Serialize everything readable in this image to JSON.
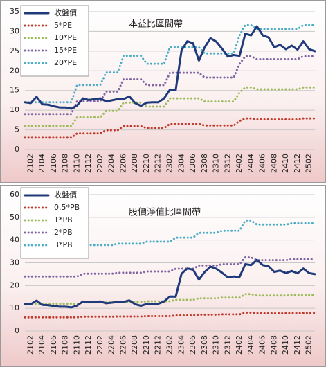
{
  "chart_data": [
    {
      "type": "line",
      "title": "本益比區間帶",
      "legend": "upper left",
      "grid": true,
      "categories": [
        null,
        "2102",
        null,
        "2104",
        null,
        "2106",
        null,
        "2108",
        null,
        "2110",
        null,
        "2112",
        null,
        "2202",
        null,
        "2204",
        null,
        "2206",
        null,
        "2208",
        null,
        "2210",
        null,
        "2212",
        null,
        "2302",
        null,
        "2304",
        null,
        "2306",
        null,
        "2308",
        null,
        "2310",
        null,
        "2312",
        null,
        "2402",
        null,
        "2404",
        null,
        "2406",
        null,
        "2408",
        null,
        "2410",
        null,
        "2412",
        null,
        "2502",
        null
      ],
      "ylim": [
        0,
        35
      ],
      "yticks": [
        0,
        5,
        10,
        15,
        20,
        25,
        30,
        35
      ],
      "series": [
        {
          "name": "收盤價",
          "color": "#1f3a7a",
          "values": [
            12,
            11.8,
            13.4,
            11.5,
            11.4,
            11,
            10.7,
            10.7,
            10.4,
            11.2,
            13,
            12.6,
            12.8,
            13,
            12.2,
            12.5,
            12.8,
            12.8,
            13.5,
            11.8,
            11.1,
            11.9,
            12,
            12,
            13,
            15.2,
            15.1,
            25.2,
            27.5,
            27,
            22.6,
            26,
            28.3,
            27.4,
            25.6,
            23.6,
            24,
            23.8,
            29.4,
            29,
            31.3,
            29,
            28.5,
            26,
            26.6,
            25.5,
            26.4,
            25.4,
            27.5,
            25.5,
            25
          ]
        },
        {
          "name": "5*PE",
          "color": "#c0392b",
          "values": [
            3,
            3,
            3,
            3,
            3,
            3,
            3,
            3,
            3,
            4.1,
            4.1,
            4.1,
            4.1,
            4.1,
            4.9,
            4.9,
            4.9,
            5.95,
            5.95,
            5.95,
            5.95,
            5.45,
            5.45,
            5.45,
            5.45,
            6.5,
            6.5,
            6.5,
            6.5,
            6.5,
            6.5,
            6.1,
            6.1,
            6.1,
            6.1,
            6.1,
            6.1,
            7.25,
            7.9,
            7.9,
            7.65,
            7.65,
            7.65,
            7.65,
            7.65,
            7.65,
            7.65,
            7.65,
            7.9,
            7.9,
            7.9
          ]
        },
        {
          "name": "10*PE",
          "color": "#9bbb59",
          "values": [
            6,
            6,
            6,
            6,
            6,
            6,
            6,
            6,
            6,
            8.2,
            8.2,
            8.2,
            8.2,
            8.2,
            9.8,
            9.8,
            9.8,
            11.9,
            11.9,
            11.9,
            11.9,
            10.9,
            10.9,
            10.9,
            10.9,
            13,
            13,
            13,
            13,
            13,
            13,
            12.2,
            12.2,
            12.2,
            12.2,
            12.2,
            12.2,
            14.5,
            15.8,
            15.8,
            15.3,
            15.3,
            15.3,
            15.3,
            15.3,
            15.3,
            15.3,
            15.3,
            15.8,
            15.8,
            15.8
          ]
        },
        {
          "name": "15*PE",
          "color": "#8064a2",
          "values": [
            9,
            9,
            9,
            9,
            9,
            9,
            9,
            9,
            9,
            12.3,
            12.3,
            12.3,
            12.3,
            12.3,
            14.7,
            14.7,
            14.7,
            17.85,
            17.85,
            17.85,
            17.85,
            16.35,
            16.35,
            16.35,
            16.35,
            19.5,
            19.5,
            19.5,
            19.5,
            19.5,
            19.5,
            18.3,
            18.3,
            18.3,
            18.3,
            18.3,
            18.3,
            21.75,
            23.7,
            23.7,
            22.95,
            22.95,
            22.95,
            22.95,
            22.95,
            22.95,
            22.95,
            22.95,
            23.7,
            23.7,
            23.7
          ]
        },
        {
          "name": "20*PE",
          "color": "#4bacc6",
          "values": [
            12,
            12,
            12,
            12,
            12,
            12,
            12,
            12,
            12,
            16.4,
            16.4,
            16.4,
            16.4,
            16.4,
            19.6,
            19.6,
            19.6,
            23.8,
            23.8,
            23.8,
            23.8,
            21.8,
            21.8,
            21.8,
            21.8,
            26,
            26,
            26,
            26,
            26,
            26,
            24.4,
            24.4,
            24.4,
            24.4,
            24.4,
            24.4,
            29,
            31.6,
            31.6,
            30.6,
            30.6,
            30.6,
            30.6,
            30.6,
            30.6,
            30.6,
            30.6,
            31.6,
            31.6,
            31.6
          ]
        }
      ]
    },
    {
      "type": "line",
      "title": "股價淨值比區間帶",
      "legend": "upper left",
      "grid": true,
      "categories": [
        null,
        "2102",
        null,
        "2104",
        null,
        "2106",
        null,
        "2108",
        null,
        "2110",
        null,
        "2112",
        null,
        "2202",
        null,
        "2204",
        null,
        "2206",
        null,
        "2208",
        null,
        "2210",
        null,
        "2212",
        null,
        "2302",
        null,
        "2304",
        null,
        "2306",
        null,
        "2308",
        null,
        "2310",
        null,
        "2312",
        null,
        "2402",
        null,
        "2404",
        null,
        "2406",
        null,
        "2408",
        null,
        "2410",
        null,
        "2412",
        null,
        "2502",
        null
      ],
      "ylim": [
        0,
        60
      ],
      "yticks": [
        0,
        10,
        20,
        30,
        40,
        50,
        60
      ],
      "series": [
        {
          "name": "收盤價",
          "color": "#1f3a7a",
          "values": [
            12,
            11.8,
            13.4,
            11.5,
            11.4,
            11,
            10.7,
            10.7,
            10.4,
            11.2,
            13,
            12.6,
            12.8,
            13,
            12.2,
            12.5,
            12.8,
            12.8,
            13.5,
            11.8,
            11.1,
            11.9,
            12,
            12,
            13,
            15.2,
            15.1,
            25.2,
            27.5,
            27,
            22.6,
            26,
            28.3,
            27.4,
            25.6,
            23.6,
            24,
            23.8,
            29.4,
            29,
            31.3,
            29,
            28.5,
            26,
            26.6,
            25.5,
            26.4,
            25.4,
            27.5,
            25.5,
            25
          ]
        },
        {
          "name": "0.5*PB",
          "color": "#c0392b",
          "values": [
            6,
            6,
            6,
            6,
            6,
            6,
            6,
            6,
            6,
            6,
            6.3,
            6.3,
            6.3,
            6.3,
            6.3,
            6.3,
            6.4,
            6.4,
            6.4,
            6.4,
            6.4,
            6.55,
            6.55,
            6.55,
            6.55,
            6.55,
            6.85,
            6.85,
            6.85,
            6.85,
            7.2,
            7.2,
            7.2,
            7.2,
            7.35,
            7.35,
            7.35,
            7.35,
            8.1,
            8.1,
            7.8,
            7.8,
            7.8,
            7.8,
            7.8,
            7.8,
            7.9,
            7.9,
            7.9,
            7.9,
            7.9
          ]
        },
        {
          "name": "1*PB",
          "color": "#9bbb59",
          "values": [
            12,
            12,
            12,
            12,
            12,
            12,
            12,
            12,
            12,
            12,
            12.6,
            12.6,
            12.6,
            12.6,
            12.6,
            12.6,
            12.8,
            12.8,
            12.8,
            12.8,
            12.8,
            13.1,
            13.1,
            13.1,
            13.1,
            13.1,
            13.7,
            13.7,
            13.7,
            13.7,
            14.4,
            14.4,
            14.4,
            14.4,
            14.7,
            14.7,
            14.7,
            14.7,
            16.2,
            16.2,
            15.6,
            15.6,
            15.6,
            15.6,
            15.6,
            15.6,
            15.8,
            15.8,
            15.8,
            15.8,
            15.8
          ]
        },
        {
          "name": "2*PB",
          "color": "#8064a2",
          "values": [
            24,
            24,
            24,
            24,
            24,
            24,
            24,
            24,
            24,
            24,
            25.2,
            25.2,
            25.2,
            25.2,
            25.2,
            25.2,
            25.6,
            25.6,
            25.6,
            25.6,
            25.6,
            26.2,
            26.2,
            26.2,
            26.2,
            26.2,
            27.4,
            27.4,
            27.4,
            27.4,
            28.8,
            28.8,
            28.8,
            28.8,
            29.4,
            29.4,
            29.4,
            29.4,
            32.4,
            32.4,
            31.2,
            31.2,
            31.2,
            31.2,
            31.2,
            31.2,
            31.6,
            31.6,
            31.6,
            31.6,
            31.6
          ]
        },
        {
          "name": "3*PB",
          "color": "#4bacc6",
          "values": [
            36,
            36,
            36,
            36,
            36,
            36,
            36,
            36,
            36,
            36,
            37.8,
            37.8,
            37.8,
            37.8,
            37.8,
            37.8,
            38.4,
            38.4,
            38.4,
            38.4,
            38.4,
            39.3,
            39.3,
            39.3,
            39.3,
            39.3,
            41.1,
            41.1,
            41.1,
            41.1,
            43.2,
            43.2,
            43.2,
            43.2,
            44.1,
            44.1,
            44.1,
            44.1,
            48.6,
            48.6,
            46.8,
            46.8,
            46.8,
            46.8,
            46.8,
            46.8,
            47.4,
            47.4,
            47.4,
            47.4,
            47.4
          ]
        }
      ]
    }
  ]
}
